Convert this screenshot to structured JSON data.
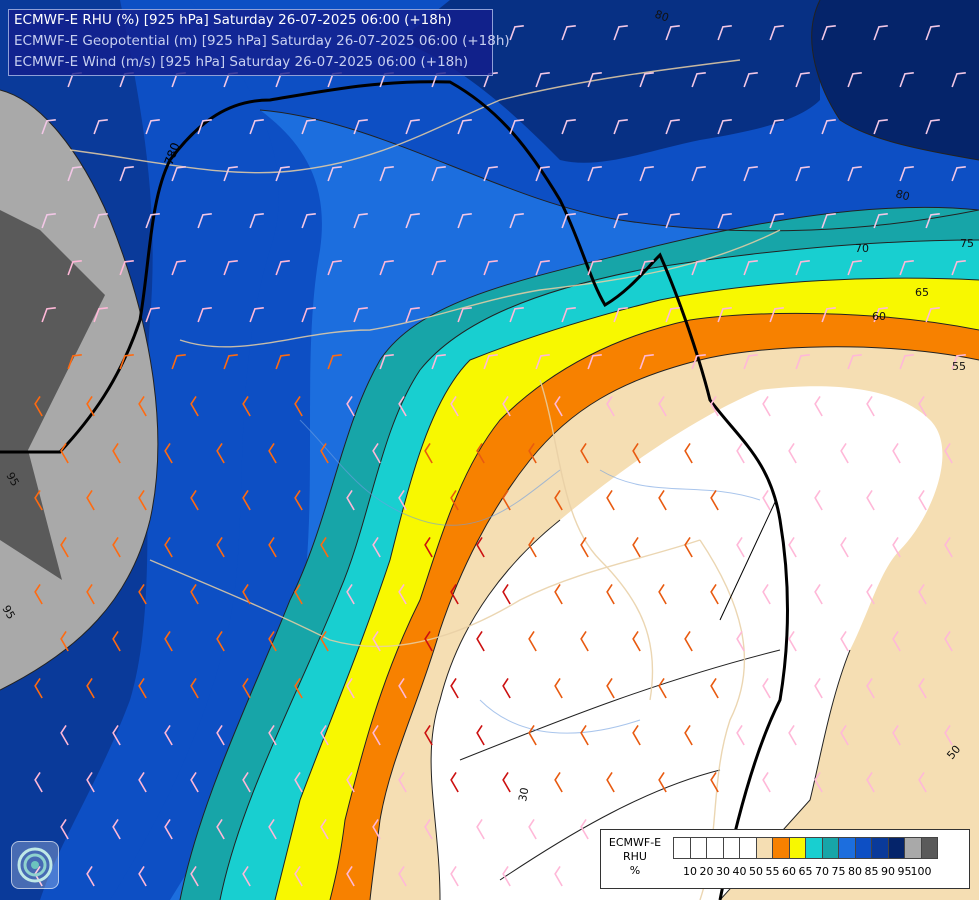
{
  "header": {
    "lines": [
      "ECMWF-E RHU (%) [925 hPa] Saturday 26-07-2025 06:00 (+18h)",
      "ECMWF-E Geopotential (m) [925 hPa] Saturday 26-07-2025 06:00 (+18h)",
      "ECMWF-E Wind (m/s) [925 hPa] Saturday 26-07-2025 06:00 (+18h)"
    ]
  },
  "legend": {
    "title_lines": [
      "ECMWF-E",
      "RHU",
      "%"
    ],
    "colors": [
      "#ffffff",
      "#ffffff",
      "#ffffff",
      "#ffffff",
      "#ffffff",
      "#f5deb3",
      "#f78100",
      "#f8f800",
      "#18cfd0",
      "#17a5a8",
      "#1c6ede",
      "#0d4fc4",
      "#0a3a9a",
      "#05246a",
      "#a9a9a9",
      "#5a5a5a"
    ],
    "ticks": [
      "10",
      "20",
      "30",
      "40",
      "50",
      "55",
      "60",
      "65",
      "70",
      "75",
      "80",
      "85",
      "90",
      "95",
      "100"
    ]
  },
  "contour_labels": [
    "80",
    "780",
    "80",
    "75",
    "70",
    "65",
    "60",
    "55",
    "95",
    "50",
    "30",
    "95"
  ],
  "logo": {
    "icon": "ecmwf-logo-icon"
  }
}
